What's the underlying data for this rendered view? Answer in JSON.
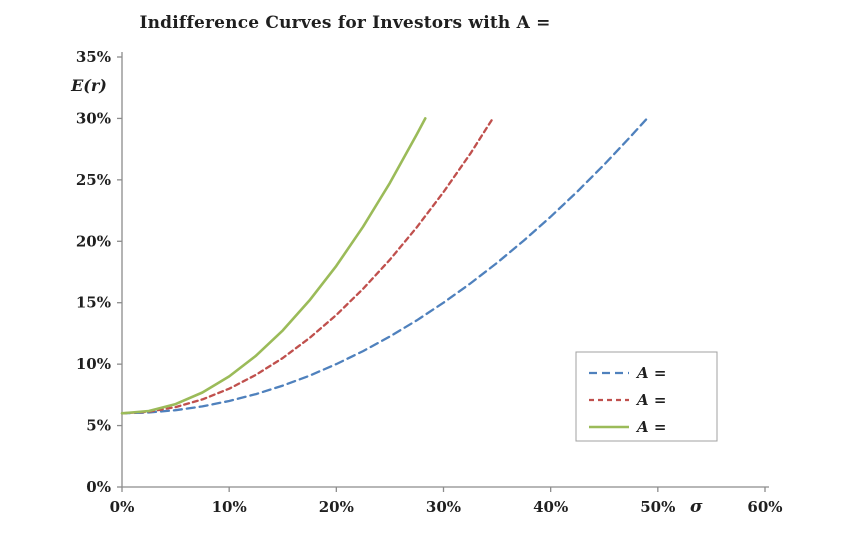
{
  "page": {
    "background": "#ffffff"
  },
  "chart_data": {
    "type": "line",
    "title": "Indifference Curves for Investors with A =",
    "xlabel": "σ",
    "ylabel": "E(r)",
    "xlim": [
      0,
      60
    ],
    "ylim": [
      0,
      35
    ],
    "grid": false,
    "legend_position": "lower-right-inside",
    "axis_color": "#8c8c8c",
    "text_color": "#1f1f1f",
    "x_tick_values": [
      0,
      10,
      20,
      30,
      40,
      50,
      60
    ],
    "x_tick_labels": [
      "0%",
      "10%",
      "20%",
      "30%",
      "40%",
      "50%",
      "60%"
    ],
    "y_tick_values": [
      0,
      5,
      10,
      15,
      20,
      25,
      30,
      35
    ],
    "y_tick_labels": [
      "0%",
      "5%",
      "10%",
      "15%",
      "20%",
      "25%",
      "30%",
      "35%"
    ],
    "series": [
      {
        "id": "blue-dashed",
        "legend_label": "A =",
        "style": "dashed",
        "dash": "8 5",
        "width": 2.3,
        "color": "#4f81bd",
        "points": [
          [
            0,
            6
          ],
          [
            2.5,
            6.06
          ],
          [
            5,
            6.25
          ],
          [
            7.5,
            6.56
          ],
          [
            10,
            7
          ],
          [
            12.5,
            7.56
          ],
          [
            15,
            8.25
          ],
          [
            17.5,
            9.06
          ],
          [
            20,
            10
          ],
          [
            22.5,
            11.06
          ],
          [
            25,
            12.25
          ],
          [
            27.5,
            13.56
          ],
          [
            30,
            15
          ],
          [
            32.5,
            16.56
          ],
          [
            35,
            18.25
          ],
          [
            37.5,
            20.06
          ],
          [
            40,
            22
          ],
          [
            42.5,
            24.06
          ],
          [
            45,
            26.25
          ],
          [
            47.5,
            28.56
          ],
          [
            49,
            30
          ]
        ]
      },
      {
        "id": "red-dashed",
        "legend_label": "A =",
        "style": "dashed",
        "dash": "5 4",
        "width": 2.3,
        "color": "#c0504d",
        "points": [
          [
            0,
            6
          ],
          [
            2.5,
            6.13
          ],
          [
            5,
            6.5
          ],
          [
            7.5,
            7.13
          ],
          [
            10,
            8
          ],
          [
            12.5,
            9.13
          ],
          [
            15,
            10.5
          ],
          [
            17.5,
            12.13
          ],
          [
            20,
            14
          ],
          [
            22.5,
            16.13
          ],
          [
            25,
            18.5
          ],
          [
            27.5,
            21.13
          ],
          [
            30,
            24
          ],
          [
            32.5,
            27.13
          ],
          [
            34.6,
            30
          ]
        ]
      },
      {
        "id": "green-solid",
        "legend_label": "A =",
        "style": "solid",
        "dash": "",
        "width": 2.6,
        "color": "#9bbb59",
        "points": [
          [
            0,
            6
          ],
          [
            2.5,
            6.19
          ],
          [
            5,
            6.75
          ],
          [
            7.5,
            7.69
          ],
          [
            10,
            9
          ],
          [
            12.5,
            10.69
          ],
          [
            15,
            12.75
          ],
          [
            17.5,
            15.19
          ],
          [
            20,
            18
          ],
          [
            22.5,
            21.19
          ],
          [
            25,
            24.75
          ],
          [
            27.5,
            28.69
          ],
          [
            28.3,
            30
          ]
        ]
      }
    ]
  }
}
